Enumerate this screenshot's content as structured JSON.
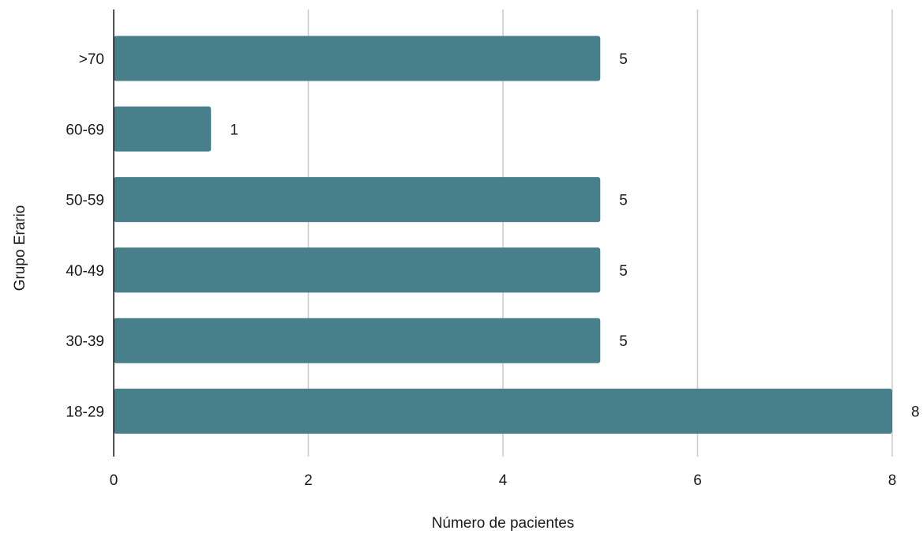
{
  "chart_data": {
    "type": "bar",
    "orientation": "horizontal",
    "categories": [
      "18-29",
      "30-39",
      "40-49",
      "50-59",
      "60-69",
      ">70"
    ],
    "values": [
      8,
      5,
      5,
      5,
      1,
      5
    ],
    "title": "",
    "xlabel": "Número de pacientes",
    "ylabel": "Grupo Erario",
    "xlim": [
      0,
      8
    ],
    "xticks": [
      0,
      2,
      4,
      6,
      8
    ],
    "grid": "vertical",
    "data_labels": true,
    "bar_color": "#477f8b",
    "gridline_color": "#cccccc",
    "axis_color": "#1a1a1a"
  }
}
